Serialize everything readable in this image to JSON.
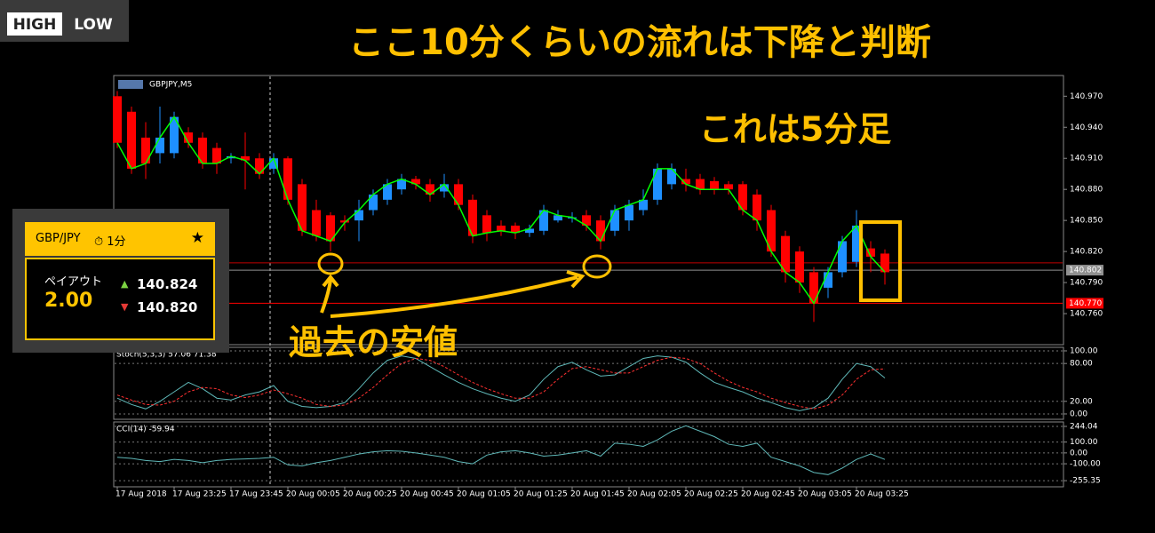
{
  "logo": {
    "left": "HIGH",
    "right": "LOW"
  },
  "annotations": {
    "title": "ここ10分くらいの流れは下降と判断",
    "timeframe_note": "これは5分足",
    "past_low": "過去の安値"
  },
  "widget": {
    "pair": "GBP/JPY",
    "duration": "1分",
    "star": "★",
    "payout_label": "ペイアウト",
    "payout": "2.00",
    "high_price": "140.824",
    "low_price": "140.820"
  },
  "chart_data": {
    "type": "candlestick",
    "symbol_label": "GBPJPY,M5",
    "categories": [
      "17 Aug 2018",
      null,
      null,
      null,
      "17 Aug 23:25",
      null,
      null,
      null,
      "17 Aug 23:45",
      null,
      null,
      null,
      "20 Aug 00:05",
      null,
      null,
      null,
      "20 Aug 00:25",
      null,
      null,
      null,
      "20 Aug 00:45",
      null,
      null,
      null,
      "20 Aug 01:05",
      null,
      null,
      null,
      "20 Aug 01:25",
      null,
      null,
      null,
      "20 Aug 01:45",
      null,
      null,
      null,
      "20 Aug 02:05",
      null,
      null,
      null,
      "20 Aug 02:25",
      null,
      null,
      null,
      "20 Aug 02:45",
      null,
      null,
      null,
      "20 Aug 03:05",
      null,
      null,
      null,
      "20 Aug 03:25",
      null,
      null
    ],
    "open": [
      140.97,
      140.955,
      140.93,
      140.915,
      140.915,
      140.935,
      140.93,
      140.92,
      140.91,
      140.912,
      140.91,
      140.9,
      140.91,
      140.885,
      140.86,
      140.855,
      140.85,
      140.85,
      140.86,
      140.87,
      140.88,
      140.89,
      140.885,
      140.878,
      140.885,
      140.87,
      140.855,
      140.845,
      140.845,
      140.838,
      140.84,
      140.85,
      140.852,
      140.855,
      140.85,
      140.84,
      140.85,
      140.86,
      140.87,
      140.885,
      140.89,
      140.89,
      140.888,
      140.885,
      140.885,
      140.875,
      140.86,
      140.835,
      140.82,
      140.8,
      140.785,
      140.8,
      140.81,
      140.823,
      140.818
    ],
    "high": [
      140.975,
      140.96,
      140.945,
      140.96,
      140.955,
      140.94,
      140.935,
      140.925,
      140.915,
      140.935,
      140.915,
      140.915,
      140.912,
      140.89,
      140.87,
      140.858,
      140.855,
      140.87,
      140.88,
      140.89,
      140.895,
      140.893,
      140.89,
      140.895,
      140.89,
      140.875,
      140.86,
      140.85,
      140.848,
      140.846,
      140.865,
      140.86,
      140.858,
      140.86,
      140.855,
      140.865,
      140.87,
      140.88,
      140.905,
      140.905,
      140.9,
      140.895,
      140.892,
      140.888,
      140.888,
      140.88,
      140.865,
      140.84,
      140.825,
      140.805,
      140.805,
      140.835,
      140.86,
      140.83,
      140.822
    ],
    "low": [
      140.92,
      140.895,
      140.89,
      140.905,
      140.91,
      140.92,
      140.9,
      140.895,
      140.905,
      140.88,
      140.89,
      140.895,
      140.865,
      140.835,
      140.83,
      140.82,
      140.84,
      140.83,
      140.855,
      140.865,
      140.875,
      140.88,
      140.868,
      140.872,
      140.86,
      140.828,
      140.83,
      140.835,
      140.832,
      140.834,
      140.836,
      140.848,
      140.848,
      140.84,
      140.822,
      140.835,
      140.84,
      140.855,
      140.865,
      140.88,
      140.878,
      140.875,
      140.875,
      140.875,
      140.855,
      140.84,
      140.815,
      140.79,
      140.78,
      140.752,
      140.775,
      140.795,
      140.805,
      140.8,
      140.788
    ],
    "close": [
      140.925,
      140.9,
      140.905,
      140.93,
      140.95,
      140.925,
      140.905,
      140.905,
      140.912,
      140.908,
      140.895,
      140.91,
      140.87,
      140.84,
      140.835,
      140.83,
      140.848,
      140.86,
      140.875,
      140.885,
      140.89,
      140.885,
      140.875,
      140.885,
      140.865,
      140.835,
      140.838,
      140.84,
      140.838,
      140.842,
      140.86,
      140.855,
      140.853,
      140.845,
      140.83,
      140.86,
      140.865,
      140.87,
      140.9,
      140.9,
      140.885,
      140.88,
      140.88,
      140.88,
      140.86,
      140.85,
      140.82,
      140.8,
      140.79,
      140.77,
      140.8,
      140.83,
      140.845,
      140.815,
      140.8
    ],
    "up_color": "#1e90ff",
    "down_color": "#ff0000",
    "line_color": "#00ff00",
    "ylim": [
      140.73,
      140.99
    ],
    "yticks": [
      {
        "value": 140.97,
        "label": "140.970"
      },
      {
        "value": 140.94,
        "label": "140.940"
      },
      {
        "value": 140.91,
        "label": "140.910"
      },
      {
        "value": 140.88,
        "label": "140.880"
      },
      {
        "value": 140.85,
        "label": "140.850"
      },
      {
        "value": 140.82,
        "label": "140.820"
      },
      {
        "value": 140.79,
        "label": "140.790"
      },
      {
        "value": 140.76,
        "label": "140.760"
      }
    ],
    "price_markers": [
      {
        "value": 140.802,
        "label": "140.802",
        "color": "#909090"
      },
      {
        "value": 140.77,
        "label": "140.770",
        "color": "#ff0000"
      }
    ],
    "levels": [
      140.809
    ],
    "stoch": {
      "label": "Stoch(5,3,3) 57.06 71.38",
      "ylim": [
        -8.5,
        105.6
      ],
      "yticks": [
        {
          "value": 100,
          "label": "100.00"
        },
        {
          "value": 80,
          "label": "80.00"
        },
        {
          "value": 20,
          "label": "20.00"
        },
        {
          "value": 0,
          "label": "0.00"
        }
      ],
      "main": [
        25,
        15,
        8,
        20,
        35,
        50,
        40,
        25,
        22,
        30,
        35,
        45,
        20,
        12,
        10,
        12,
        18,
        40,
        65,
        85,
        92,
        88,
        75,
        62,
        50,
        40,
        32,
        25,
        20,
        30,
        55,
        75,
        82,
        70,
        60,
        62,
        75,
        88,
        92,
        90,
        82,
        65,
        50,
        42,
        35,
        25,
        18,
        10,
        5,
        10,
        25,
        55,
        80,
        75,
        57.06
      ],
      "signal": [
        30,
        22,
        15,
        14,
        20,
        35,
        42,
        40,
        30,
        26,
        30,
        38,
        32,
        25,
        15,
        12,
        14,
        25,
        42,
        62,
        80,
        88,
        85,
        75,
        62,
        50,
        40,
        32,
        25,
        25,
        35,
        55,
        72,
        75,
        70,
        65,
        65,
        75,
        85,
        90,
        88,
        80,
        65,
        52,
        42,
        35,
        25,
        18,
        12,
        8,
        14,
        30,
        55,
        70,
        71.38
      ],
      "main_color": "#5fb8b8",
      "signal_color": "#ff3030"
    },
    "cci": {
      "label": "CCI(14) -59.94",
      "ylim": [
        -312,
        285
      ],
      "yticks": [
        {
          "value": 244.04,
          "label": "244.04"
        },
        {
          "value": 100,
          "label": "100.00"
        },
        {
          "value": 0,
          "label": "0.00"
        },
        {
          "value": -100,
          "label": "-100.00"
        },
        {
          "value": -255.35,
          "label": "-255.35"
        }
      ],
      "values": [
        -40,
        -50,
        -70,
        -80,
        -60,
        -70,
        -90,
        -70,
        -60,
        -55,
        -50,
        -40,
        -110,
        -120,
        -90,
        -70,
        -40,
        -10,
        10,
        20,
        15,
        0,
        -20,
        -40,
        -80,
        -100,
        -20,
        10,
        20,
        0,
        -30,
        -20,
        0,
        20,
        -30,
        90,
        80,
        60,
        120,
        200,
        250,
        200,
        150,
        80,
        60,
        90,
        -40,
        -80,
        -120,
        -180,
        -200,
        -140,
        -60,
        -10,
        -59.94
      ],
      "color": "#5fb8b8"
    }
  }
}
